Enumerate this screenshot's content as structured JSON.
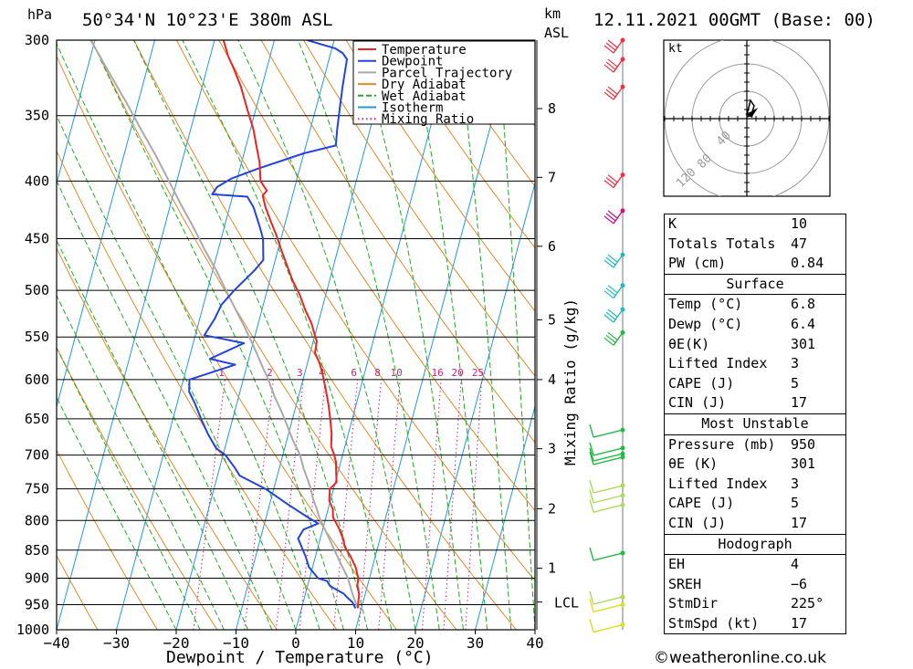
{
  "header": {
    "location": "50°34'N  10°23'E  380m  ASL",
    "datetime": "12.11.2021  00GMT  (Base: 00)",
    "pressure_unit": "hPa",
    "height_unit_km": "km",
    "height_unit_asl": "ASL"
  },
  "chart_data": {
    "type": "line",
    "subtype": "skew-T log-P diagram",
    "xlabel": "Dewpoint / Temperature (°C)",
    "ylabel": "hPa",
    "x_ticks": [
      -40,
      -30,
      -20,
      -10,
      0,
      10,
      20,
      30,
      40
    ],
    "x_tick_labels": [
      "−40",
      "−30",
      "−20",
      "−10",
      "0",
      "10",
      "20",
      "30",
      "40"
    ],
    "xlim": [
      -40,
      40
    ],
    "pressure_levels": [
      300,
      350,
      400,
      450,
      500,
      550,
      600,
      650,
      700,
      750,
      800,
      850,
      900,
      950,
      1000
    ],
    "ylim": [
      1000,
      300
    ],
    "y_scale": "log",
    "legend_placement": "top",
    "legend": [
      {
        "label": "Temperature",
        "color": "#ee2222"
      },
      {
        "label": "Dewpoint",
        "color": "#2244dd"
      },
      {
        "label": "Parcel Trajectory",
        "color": "#aaaaaa"
      },
      {
        "label": "Dry Adiabat",
        "color": "#e08a2c"
      },
      {
        "label": "Wet Adiabat",
        "color": "#22aa22"
      },
      {
        "label": "Isotherm",
        "color": "#2299dd"
      },
      {
        "label": "Mixing Ratio",
        "color": "#cc2277"
      }
    ],
    "series": [
      {
        "name": "Temperature",
        "color": "#ee2222",
        "points": [
          [
            9.4,
            957
          ],
          [
            9.2,
            945
          ],
          [
            9.0,
            930
          ],
          [
            8.3,
            913
          ],
          [
            8.2,
            904
          ],
          [
            8.0,
            897
          ],
          [
            7.2,
            880
          ],
          [
            5.8,
            860
          ],
          [
            4.5,
            845
          ],
          [
            3.8,
            830
          ],
          [
            2.6,
            812
          ],
          [
            1.2,
            795
          ],
          [
            0.8,
            782
          ],
          [
            -0.2,
            768
          ],
          [
            -0.6,
            750
          ],
          [
            0.2,
            740
          ],
          [
            -0.3,
            725
          ],
          [
            -0.8,
            710
          ],
          [
            -1.4,
            700
          ],
          [
            -2.3,
            688
          ],
          [
            -2.8,
            670
          ],
          [
            -3.7,
            650
          ],
          [
            -4.7,
            630
          ],
          [
            -5.9,
            610
          ],
          [
            -7.2,
            590
          ],
          [
            -8.0,
            580
          ],
          [
            -9.2,
            568
          ],
          [
            -9.4,
            555
          ],
          [
            -10.0,
            548
          ],
          [
            -11.1,
            535
          ],
          [
            -12.8,
            520
          ],
          [
            -14.3,
            505
          ],
          [
            -16.2,
            490
          ],
          [
            -17.6,
            477
          ],
          [
            -19.5,
            460
          ],
          [
            -20.9,
            447
          ],
          [
            -22.4,
            435
          ],
          [
            -24.0,
            422
          ],
          [
            -25.0,
            412
          ],
          [
            -24.5,
            408
          ],
          [
            -26.0,
            400
          ],
          [
            -27.0,
            385
          ],
          [
            -28.5,
            370
          ],
          [
            -29.5,
            360
          ],
          [
            -31.5,
            345
          ],
          [
            -33.5,
            330
          ],
          [
            -35.5,
            318
          ],
          [
            -37.0,
            310
          ],
          [
            -38.5,
            300
          ]
        ]
      },
      {
        "name": "Dewpoint",
        "color": "#2244dd",
        "points": [
          [
            9.0,
            957
          ],
          [
            8.2,
            945
          ],
          [
            7.0,
            935
          ],
          [
            6.4,
            929
          ],
          [
            3.8,
            915
          ],
          [
            3.0,
            905
          ],
          [
            1.4,
            900
          ],
          [
            -0.6,
            880
          ],
          [
            -1.7,
            860
          ],
          [
            -3.7,
            830
          ],
          [
            -3.2,
            815
          ],
          [
            -1.0,
            805
          ],
          [
            -3.0,
            795
          ],
          [
            -6.8,
            775
          ],
          [
            -11.4,
            750
          ],
          [
            -16.3,
            730
          ],
          [
            -17.5,
            718
          ],
          [
            -18.2,
            712
          ],
          [
            -19.6,
            700
          ],
          [
            -21.5,
            690
          ],
          [
            -23.5,
            670
          ],
          [
            -25.3,
            650
          ],
          [
            -27.0,
            630
          ],
          [
            -28.5,
            615
          ],
          [
            -29.0,
            600
          ],
          [
            -22.0,
            582
          ],
          [
            -26.5,
            575
          ],
          [
            -21.5,
            557
          ],
          [
            -28.5,
            548
          ],
          [
            -27.5,
            530
          ],
          [
            -27.0,
            515
          ],
          [
            -25.5,
            500
          ],
          [
            -23.0,
            480
          ],
          [
            -22.0,
            470
          ],
          [
            -23.0,
            450
          ],
          [
            -24.0,
            440
          ],
          [
            -26.0,
            422
          ],
          [
            -27.5,
            413
          ],
          [
            -33.5,
            411
          ],
          [
            -33.0,
            405
          ],
          [
            -31.0,
            398
          ],
          [
            -27.0,
            390
          ],
          [
            -20.0,
            378
          ],
          [
            -15.0,
            372
          ],
          [
            -15.5,
            360
          ],
          [
            -16.0,
            345
          ],
          [
            -16.5,
            330
          ],
          [
            -17.0,
            312
          ],
          [
            -18.0,
            308
          ],
          [
            -19.5,
            305
          ],
          [
            -24.5,
            300
          ]
        ]
      },
      {
        "name": "Parcel Trajectory",
        "color": "#aaaaaa",
        "points": [
          [
            9.4,
            957
          ],
          [
            7.9,
            930
          ],
          [
            6.4,
            900
          ],
          [
            4.3,
            870
          ],
          [
            2.9,
            850
          ],
          [
            1.5,
            830
          ],
          [
            0.0,
            810
          ],
          [
            -1.1,
            795
          ],
          [
            -2.0,
            780
          ],
          [
            -3.0,
            765
          ],
          [
            -3.8,
            750
          ],
          [
            -4.8,
            735
          ],
          [
            -5.9,
            720
          ],
          [
            -7.1,
            700
          ],
          [
            -8.9,
            680
          ],
          [
            -10.5,
            660
          ],
          [
            -12.2,
            640
          ],
          [
            -14.1,
            620
          ],
          [
            -15.8,
            600
          ],
          [
            -17.8,
            580
          ],
          [
            -19.8,
            560
          ],
          [
            -22.0,
            540
          ],
          [
            -24.4,
            520
          ],
          [
            -26.9,
            500
          ],
          [
            -29.4,
            480
          ],
          [
            -32.3,
            460
          ],
          [
            -35.1,
            440
          ],
          [
            -38.2,
            420
          ],
          [
            -41.3,
            400
          ],
          [
            -44.6,
            380
          ],
          [
            -48.3,
            360
          ],
          [
            -52.1,
            340
          ],
          [
            -56.3,
            320
          ],
          [
            -60.7,
            300
          ]
        ]
      }
    ],
    "mixing_ratio_labels": [
      "1",
      "2",
      "3",
      "4",
      "6",
      "8",
      "10",
      "16",
      "20",
      "25"
    ],
    "mixing_ratio_axis_label": "Mixing Ratio (g/kg)",
    "mixing_ratio_values": [
      1,
      2,
      3,
      4,
      6,
      8,
      10,
      16,
      20,
      25
    ],
    "height_ticks": [
      {
        "label": "8",
        "p": 345
      },
      {
        "label": "7",
        "p": 397
      },
      {
        "label": "6",
        "p": 457
      },
      {
        "label": "5",
        "p": 531
      },
      {
        "label": "4",
        "p": 600
      },
      {
        "label": "3",
        "p": 691
      },
      {
        "label": "2",
        "p": 781
      },
      {
        "label": "1",
        "p": 882
      }
    ],
    "lcl": {
      "label": "LCL",
      "p": 945
    },
    "wind_barbs": [
      {
        "p": 300,
        "color": "#ee3344"
      },
      {
        "p": 312,
        "color": "#ee3344"
      },
      {
        "p": 330,
        "color": "#ee3344"
      },
      {
        "p": 395,
        "color": "#ee3344"
      },
      {
        "p": 425,
        "color": "#cc1188"
      },
      {
        "p": 465,
        "color": "#22bbbb"
      },
      {
        "p": 495,
        "color": "#22bbbb"
      },
      {
        "p": 520,
        "color": "#22bbbb"
      },
      {
        "p": 545,
        "color": "#22bb44"
      },
      {
        "p": 665,
        "color": "#22bb44"
      },
      {
        "p": 690,
        "color": "#22bb44"
      },
      {
        "p": 698,
        "color": "#22bb44"
      },
      {
        "p": 703,
        "color": "#22bb44"
      },
      {
        "p": 745,
        "color": "#aadd55"
      },
      {
        "p": 760,
        "color": "#aadd55"
      },
      {
        "p": 775,
        "color": "#aadd55"
      },
      {
        "p": 855,
        "color": "#22bb44"
      },
      {
        "p": 935,
        "color": "#aadd55"
      },
      {
        "p": 950,
        "color": "#dddd22"
      },
      {
        "p": 990,
        "color": "#dddd22"
      }
    ]
  },
  "hodograph": {
    "unit": "kt",
    "ring_labels": [
      "40",
      "80",
      "120"
    ]
  },
  "indices": {
    "general": [
      {
        "label": "K",
        "value": "10"
      },
      {
        "label": "Totals Totals",
        "value": "47"
      },
      {
        "label": "PW (cm)",
        "value": "0.84"
      }
    ],
    "surface": {
      "title": "Surface",
      "rows": [
        {
          "label": "Temp (°C)",
          "value": "6.8"
        },
        {
          "label": "Dewp (°C)",
          "value": "6.4"
        },
        {
          "label": "θE(K)",
          "value": "301"
        },
        {
          "label": "Lifted Index",
          "value": "3"
        },
        {
          "label": "CAPE (J)",
          "value": "5"
        },
        {
          "label": "CIN (J)",
          "value": "17"
        }
      ]
    },
    "most_unstable": {
      "title": "Most Unstable",
      "rows": [
        {
          "label": "Pressure (mb)",
          "value": "950"
        },
        {
          "label": "θE (K)",
          "value": "301"
        },
        {
          "label": "Lifted Index",
          "value": "3"
        },
        {
          "label": "CAPE (J)",
          "value": "5"
        },
        {
          "label": "CIN (J)",
          "value": "17"
        }
      ]
    },
    "hodograph": {
      "title": "Hodograph",
      "rows": [
        {
          "label": "EH",
          "value": "4"
        },
        {
          "label": "SREH",
          "value": "−6"
        },
        {
          "label": "StmDir",
          "value": "225°"
        },
        {
          "label": "StmSpd (kt)",
          "value": "17"
        }
      ]
    }
  },
  "footer": {
    "copyright": "©weatheronline.co.uk"
  }
}
